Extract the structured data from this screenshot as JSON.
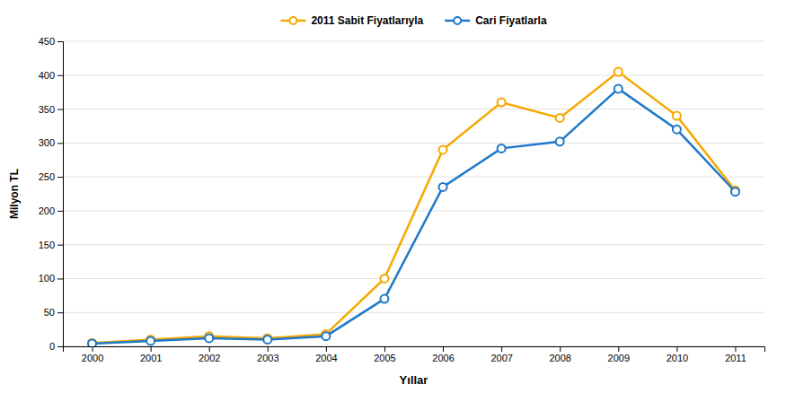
{
  "chart_data": {
    "type": "line",
    "x": [
      2000,
      2001,
      2002,
      2003,
      2004,
      2005,
      2006,
      2007,
      2008,
      2009,
      2010,
      2011
    ],
    "series": [
      {
        "name": "2011 Sabit Fiyatlarıyla",
        "color": "#F5A800",
        "marker": "circle",
        "values": [
          5,
          10,
          15,
          12,
          18,
          100,
          290,
          360,
          337,
          405,
          340,
          230
        ]
      },
      {
        "name": "Cari Fiyatlarla",
        "color": "#1E78C8",
        "marker": "circle",
        "values": [
          4,
          8,
          12,
          10,
          15,
          70,
          235,
          292,
          302,
          380,
          320,
          228
        ]
      }
    ],
    "xlabel": "Yıllar",
    "ylabel": "Milyon TL",
    "xlim": [
      1999.5,
      2011.5
    ],
    "xticks": [
      2000,
      2001,
      2002,
      2003,
      2004,
      2005,
      2006,
      2007,
      2008,
      2009,
      2010,
      2011
    ],
    "ylim": [
      0,
      450
    ],
    "yticks": [
      0,
      50,
      100,
      150,
      200,
      250,
      300,
      350,
      400,
      450
    ],
    "grid": true,
    "legend": "top"
  }
}
